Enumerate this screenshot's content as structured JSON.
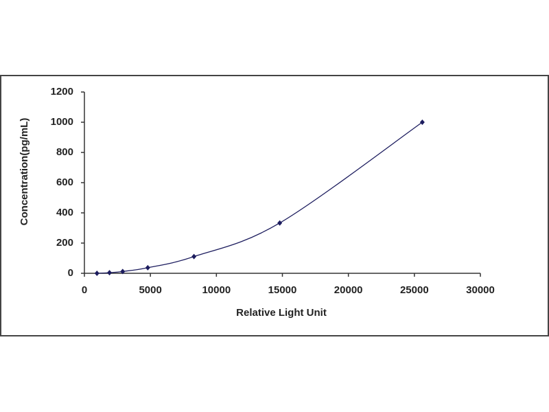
{
  "chart_data": {
    "type": "scatter",
    "line": true,
    "x_label": "Relative Light Unit",
    "y_label": "Concentration(pg/mL)",
    "x": [
      950,
      1900,
      2900,
      4800,
      8300,
      14800,
      25600
    ],
    "series": [
      {
        "color": "#1c1c5e",
        "values": [
          0,
          4,
          12,
          37,
          111,
          333,
          1000
        ]
      }
    ],
    "xlim": [
      0,
      30000
    ],
    "xticks": [
      0,
      5000,
      10000,
      15000,
      20000,
      25000,
      30000
    ],
    "ylim": [
      0,
      1200
    ],
    "yticks": [
      0,
      200,
      400,
      600,
      800,
      1000,
      1200
    ],
    "grid": false
  }
}
